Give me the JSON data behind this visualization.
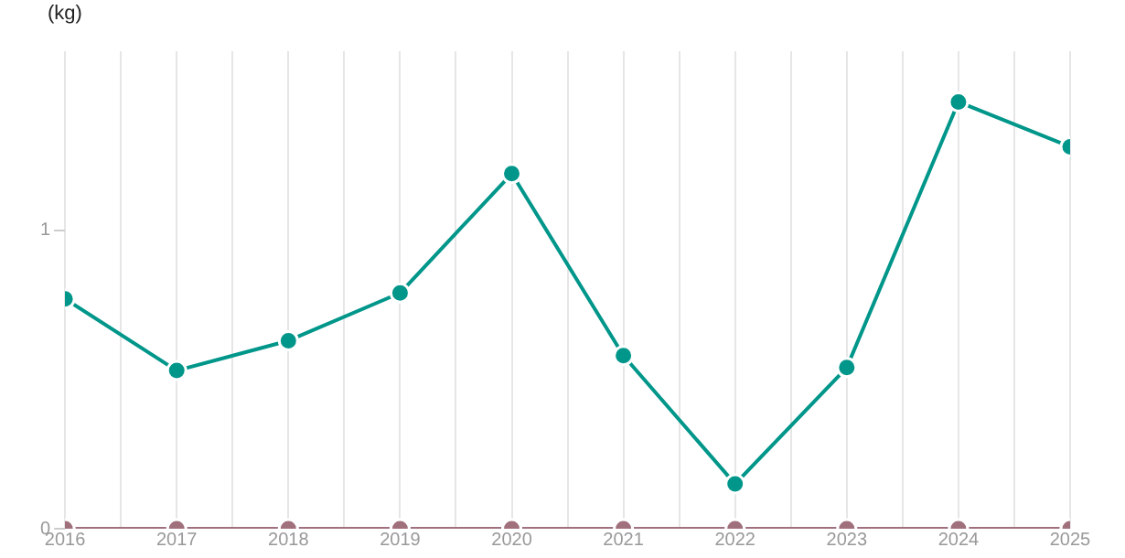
{
  "chart_data": {
    "type": "line",
    "ylabel": "(kg)",
    "x": [
      2016,
      2017,
      2018,
      2019,
      2020,
      2021,
      2022,
      2023,
      2024,
      2025
    ],
    "series": [
      {
        "color": "#00968a",
        "values": [
          0.77,
          0.53,
          0.63,
          0.79,
          1.19,
          0.58,
          0.15,
          0.54,
          1.43,
          1.28
        ]
      },
      {
        "color": "#a0707c",
        "values": [
          0,
          0,
          0,
          0,
          0,
          0,
          0,
          0,
          0,
          0
        ]
      }
    ],
    "xlim": [
      2016,
      2025
    ],
    "xticks": [
      2016,
      {
        "value": 2016.5,
        "label": null
      },
      2017,
      {
        "value": 2017.5,
        "label": null
      },
      2018,
      {
        "value": 2018.5,
        "label": null
      },
      2019,
      {
        "value": 2019.5,
        "label": null
      },
      2020,
      {
        "value": 2020.5,
        "label": null
      },
      2021,
      {
        "value": 2021.5,
        "label": null
      },
      2022,
      {
        "value": 2022.5,
        "label": null
      },
      2023,
      {
        "value": 2023.5,
        "label": null
      },
      2024,
      {
        "value": 2024.5,
        "label": null
      },
      2025
    ],
    "ylim": [
      0,
      1.6
    ],
    "yticks": [
      0,
      1
    ],
    "grid": "x",
    "legend": false,
    "marker": "circle",
    "line_style": "solid"
  }
}
